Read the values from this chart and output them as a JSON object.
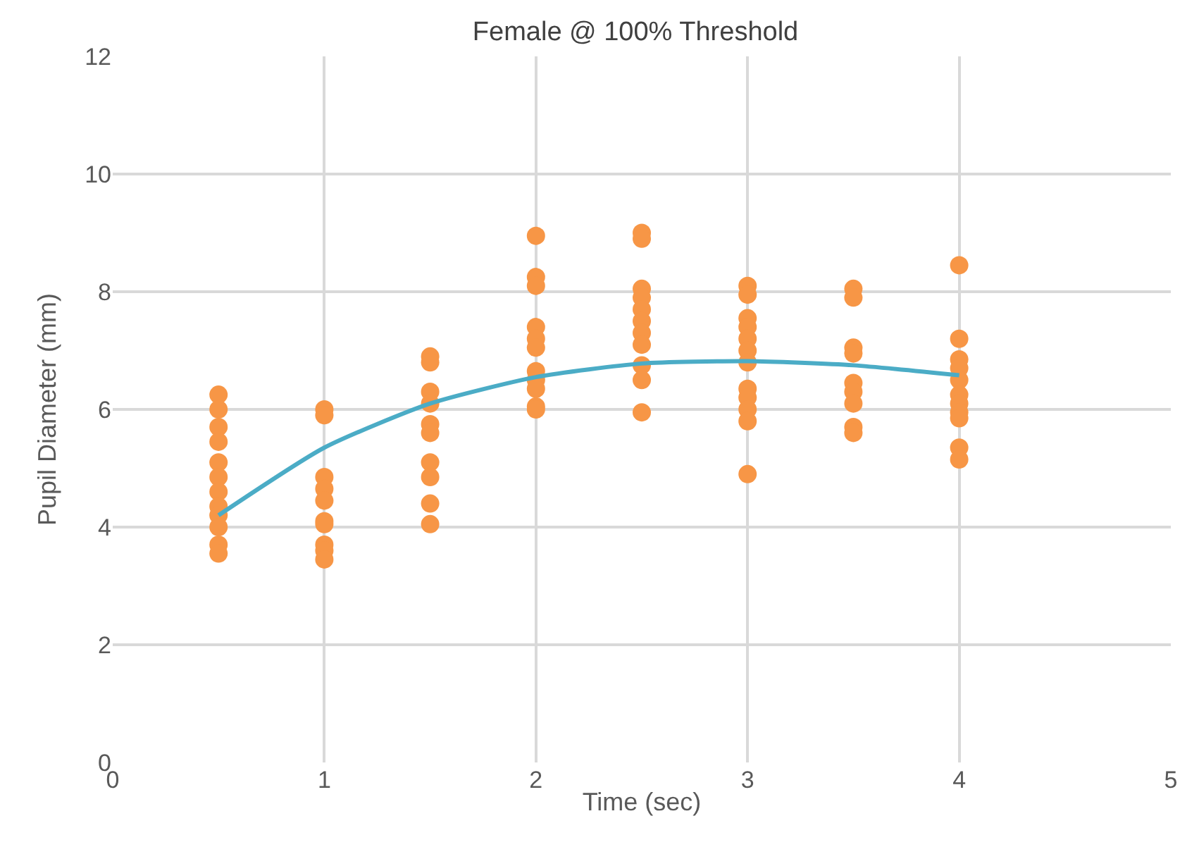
{
  "chart_data": {
    "type": "scatter",
    "title": "Female @ 100% Threshold",
    "xlabel": "Time (sec)",
    "ylabel": "Pupil Diameter (mm)",
    "xlim": [
      0,
      5
    ],
    "xticks": [
      0,
      1,
      2,
      3,
      4,
      5
    ],
    "ylim": [
      0,
      12
    ],
    "yticks": [
      0,
      2,
      4,
      6,
      8,
      10,
      12
    ],
    "grid": true,
    "marker": "circle",
    "series": [
      {
        "color": "#f79646",
        "x": [
          0.5,
          0.5,
          0.5,
          0.5,
          0.5,
          0.5,
          0.5,
          0.5,
          0.5,
          0.5,
          0.5,
          0.5,
          1,
          1,
          1,
          1,
          1,
          1,
          1,
          1,
          1,
          1,
          1.5,
          1.5,
          1.5,
          1.5,
          1.5,
          1.5,
          1.5,
          1.5,
          1.5,
          1.5,
          2,
          2,
          2,
          2,
          2,
          2,
          2,
          2,
          2,
          2,
          2,
          2.5,
          2.5,
          2.5,
          2.5,
          2.5,
          2.5,
          2.5,
          2.5,
          2.5,
          2.5,
          2.5,
          3,
          3,
          3,
          3,
          3,
          3,
          3,
          3,
          3,
          3,
          3,
          3,
          3.5,
          3.5,
          3.5,
          3.5,
          3.5,
          3.5,
          3.5,
          3.5,
          3.5,
          4,
          4,
          4,
          4,
          4,
          4,
          4,
          4,
          4,
          4,
          4
        ],
        "values": [
          6.25,
          6.0,
          5.7,
          5.45,
          5.1,
          4.85,
          4.6,
          4.35,
          4.2,
          4.0,
          3.7,
          3.55,
          6.0,
          5.9,
          4.85,
          4.65,
          4.45,
          4.1,
          4.05,
          3.7,
          3.6,
          3.45,
          6.9,
          6.8,
          6.3,
          6.1,
          5.75,
          5.6,
          5.1,
          4.85,
          4.4,
          4.05,
          8.95,
          8.25,
          8.1,
          7.4,
          7.2,
          7.05,
          6.65,
          6.5,
          6.35,
          6.05,
          6.0,
          9.0,
          8.9,
          8.05,
          7.9,
          7.7,
          7.5,
          7.3,
          7.1,
          6.75,
          6.5,
          5.95,
          8.1,
          7.95,
          7.55,
          7.4,
          7.2,
          7.0,
          6.8,
          6.35,
          6.2,
          6.0,
          5.8,
          4.9,
          8.05,
          7.9,
          7.05,
          6.95,
          6.45,
          6.3,
          6.1,
          5.7,
          5.6,
          8.45,
          7.2,
          6.85,
          6.7,
          6.5,
          6.25,
          6.1,
          5.95,
          5.85,
          5.35,
          5.15
        ]
      },
      {
        "type": "line",
        "color": "#4bacc6",
        "marker": "none",
        "x": [
          0.5,
          1,
          1.5,
          2,
          2.5,
          3,
          3.5,
          4
        ],
        "values": [
          4.2,
          5.35,
          6.1,
          6.55,
          6.78,
          6.82,
          6.75,
          6.58
        ]
      }
    ]
  }
}
